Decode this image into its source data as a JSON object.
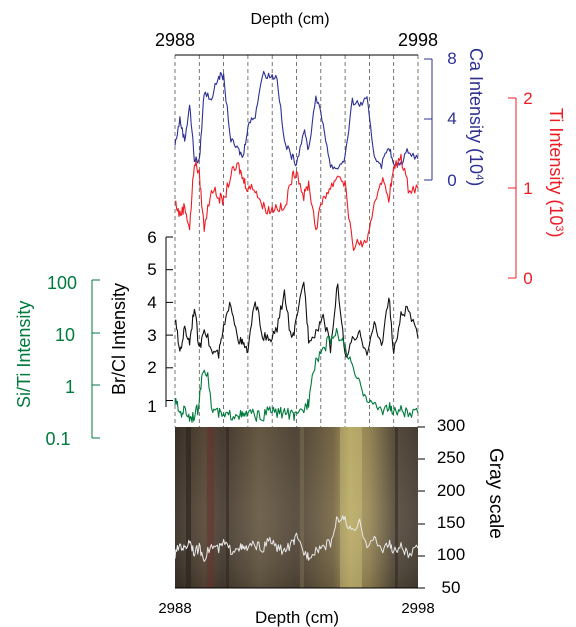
{
  "figure": {
    "x_axis_label_top": "Depth (cm)",
    "x_axis_label_bottom": "Depth (cm)",
    "x_tick_start": "2988",
    "x_tick_end": "2998"
  },
  "colors": {
    "ca": "#2e3192",
    "ti": "#ed1c24",
    "brcl": "#111111",
    "siti": "#007a3d",
    "gray": "#e8e8e8",
    "grid": "#555555"
  },
  "chart_data": [
    {
      "type": "line",
      "name": "ca",
      "ylabel": "Ca Intensity (10⁴)",
      "ylabel_main": "Ca Intensity (10",
      "ylabel_exp": "4",
      "ylabel_close": ")",
      "ylim": [
        0,
        8
      ],
      "yticks": [
        "0",
        "4",
        "8"
      ],
      "x": [
        2988.0,
        2988.2,
        2988.4,
        2988.6,
        2988.8,
        2989.0,
        2989.2,
        2989.5,
        2989.8,
        2990.0,
        2990.3,
        2990.6,
        2990.8,
        2991.0,
        2991.3,
        2991.6,
        2991.9,
        2992.2,
        2992.5,
        2992.8,
        2993.0,
        2993.3,
        2993.5,
        2993.8,
        2994.1,
        2994.4,
        2994.7,
        2995.0,
        2995.3,
        2995.6,
        2995.9,
        2996.2,
        2996.5,
        2996.8,
        2997.0,
        2997.3,
        2997.6,
        2998.0
      ],
      "y": [
        2.3,
        4.0,
        2.6,
        5.0,
        1.4,
        1.2,
        5.8,
        5.4,
        6.9,
        6.8,
        2.6,
        2.0,
        1.5,
        3.6,
        4.3,
        7.0,
        6.9,
        6.8,
        2.5,
        1.6,
        1.1,
        3.3,
        2.0,
        5.6,
        3.7,
        0.9,
        0.8,
        1.5,
        5.2,
        5.0,
        5.3,
        1.6,
        1.0,
        2.3,
        0.9,
        1.1,
        2.0,
        1.4
      ]
    },
    {
      "type": "line",
      "name": "ti",
      "ylabel": "Ti Intensity (10³)",
      "ylabel_main": "Ti Intensity (10",
      "ylabel_exp": "3",
      "ylabel_close": ")",
      "ylim": [
        0,
        2
      ],
      "yticks": [
        "0",
        "1",
        "2"
      ],
      "x": [
        2988.0,
        2988.2,
        2988.4,
        2988.6,
        2988.8,
        2989.0,
        2989.2,
        2989.5,
        2989.8,
        2990.0,
        2990.3,
        2990.6,
        2990.8,
        2991.0,
        2991.3,
        2991.6,
        2991.9,
        2992.2,
        2992.5,
        2992.8,
        2993.0,
        2993.3,
        2993.5,
        2993.8,
        2994.1,
        2994.4,
        2994.7,
        2995.0,
        2995.3,
        2995.6,
        2995.9,
        2996.2,
        2996.5,
        2996.8,
        2997.0,
        2997.3,
        2997.6,
        2998.0
      ],
      "y": [
        0.85,
        0.7,
        0.8,
        0.55,
        1.3,
        1.15,
        0.55,
        1.0,
        0.9,
        0.85,
        1.15,
        1.25,
        1.1,
        1.0,
        1.0,
        0.8,
        0.75,
        0.8,
        0.75,
        1.1,
        1.2,
        0.9,
        1.05,
        0.55,
        0.9,
        1.0,
        1.15,
        1.05,
        0.35,
        0.4,
        0.35,
        0.85,
        1.1,
        0.9,
        1.2,
        1.35,
        1.0,
        1.0
      ]
    },
    {
      "type": "line",
      "name": "brcl",
      "ylabel": "Br/Cl Intensity",
      "ylim": [
        0.8,
        6
      ],
      "yticks": [
        "1",
        "2",
        "3",
        "4",
        "5",
        "6"
      ],
      "x": [
        2988.0,
        2988.2,
        2988.4,
        2988.6,
        2988.8,
        2989.0,
        2989.2,
        2989.5,
        2989.8,
        2990.0,
        2990.3,
        2990.6,
        2990.8,
        2991.0,
        2991.3,
        2991.6,
        2991.9,
        2992.2,
        2992.5,
        2992.8,
        2993.0,
        2993.3,
        2993.5,
        2993.8,
        2994.1,
        2994.4,
        2994.7,
        2995.0,
        2995.3,
        2995.6,
        2995.9,
        2996.2,
        2996.5,
        2996.8,
        2997.0,
        2997.3,
        2997.6,
        2998.0
      ],
      "y": [
        3.5,
        2.5,
        3.2,
        2.8,
        3.9,
        2.5,
        3.3,
        2.5,
        2.4,
        3.2,
        4.0,
        2.9,
        2.7,
        2.5,
        4.1,
        3.0,
        2.8,
        3.2,
        4.3,
        2.8,
        3.4,
        4.7,
        2.9,
        3.1,
        3.6,
        2.6,
        4.6,
        2.3,
        2.8,
        3.0,
        2.5,
        3.3,
        2.7,
        4.2,
        2.4,
        3.6,
        3.8,
        2.9
      ]
    },
    {
      "type": "line",
      "name": "siti",
      "ylabel": "Si/Ti Intensity",
      "yscale": "log",
      "ylim": [
        0.1,
        100
      ],
      "yticks": [
        "0.1",
        "1",
        "10",
        "100"
      ],
      "x": [
        2988.0,
        2988.2,
        2988.4,
        2988.6,
        2988.8,
        2989.0,
        2989.2,
        2989.5,
        2989.8,
        2990.0,
        2990.3,
        2990.6,
        2990.8,
        2991.0,
        2991.3,
        2991.6,
        2991.9,
        2992.2,
        2992.5,
        2992.8,
        2993.0,
        2993.3,
        2993.5,
        2993.8,
        2994.1,
        2994.4,
        2994.7,
        2995.0,
        2995.3,
        2995.6,
        2995.9,
        2996.2,
        2996.5,
        2996.8,
        2997.0,
        2997.3,
        2997.6,
        2998.0
      ],
      "y": [
        0.5,
        0.3,
        0.35,
        0.25,
        0.28,
        0.4,
        2.5,
        0.35,
        0.3,
        0.25,
        0.28,
        0.3,
        0.25,
        0.3,
        0.28,
        0.25,
        0.35,
        0.3,
        0.32,
        0.28,
        0.25,
        0.35,
        0.5,
        3.0,
        5.0,
        8.0,
        10.0,
        5.0,
        2.0,
        1.0,
        0.6,
        0.4,
        0.35,
        0.4,
        0.3,
        0.35,
        0.28,
        0.3
      ]
    },
    {
      "type": "line",
      "name": "gray",
      "ylabel": "Gray scale",
      "ylim": [
        50,
        300
      ],
      "yticks": [
        "50",
        "100",
        "150",
        "200",
        "250",
        "300"
      ],
      "x": [
        2988.0,
        2988.2,
        2988.4,
        2988.6,
        2988.8,
        2989.0,
        2989.2,
        2989.5,
        2989.8,
        2990.0,
        2990.3,
        2990.6,
        2990.8,
        2991.0,
        2991.3,
        2991.6,
        2991.9,
        2992.2,
        2992.5,
        2992.8,
        2993.0,
        2993.3,
        2993.5,
        2993.8,
        2994.1,
        2994.4,
        2994.7,
        2995.0,
        2995.3,
        2995.6,
        2995.9,
        2996.2,
        2996.5,
        2996.8,
        2997.0,
        2997.3,
        2997.6,
        2998.0
      ],
      "y": [
        100,
        118,
        110,
        125,
        105,
        112,
        98,
        115,
        110,
        120,
        108,
        115,
        110,
        112,
        118,
        110,
        125,
        112,
        108,
        118,
        128,
        105,
        100,
        110,
        115,
        120,
        160,
        155,
        135,
        150,
        118,
        125,
        110,
        120,
        105,
        115,
        100,
        112
      ]
    }
  ]
}
